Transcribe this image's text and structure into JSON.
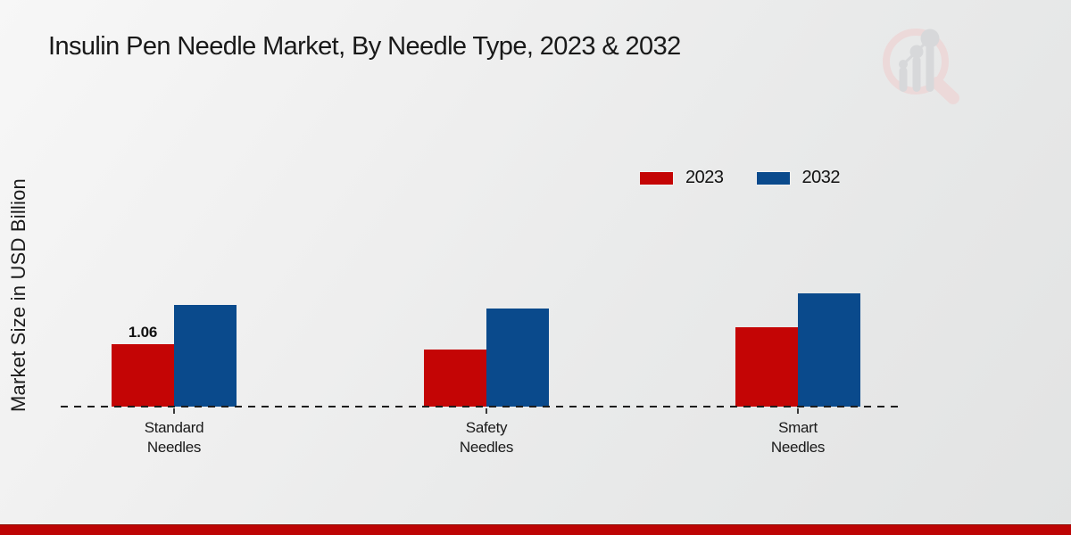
{
  "chart_data": {
    "type": "bar",
    "title": "Insulin Pen Needle Market, By Needle Type, 2023 & 2032",
    "ylabel": "Market Size in USD Billion",
    "xlabel": "",
    "categories": [
      "Standard Needles",
      "Safety Needles",
      "Smart Needles"
    ],
    "series": [
      {
        "name": "2023",
        "color": "#c40505",
        "values": [
          1.06,
          0.97,
          1.35
        ]
      },
      {
        "name": "2032",
        "color": "#0a4a8c",
        "values": [
          1.73,
          1.67,
          1.92
        ]
      }
    ],
    "data_labels": [
      {
        "series_index": 0,
        "category_index": 0,
        "text": "1.06"
      }
    ],
    "ylim": [
      0,
      2.2
    ],
    "grid": false,
    "legend_position": "top-right",
    "baseline_style": "dashed"
  },
  "branding": {
    "watermark_icon": "market-research-magnifier-bar-chart-logo",
    "footer_accent_color": "#bd0404",
    "watermark_ring_color": "#ecd9d9",
    "watermark_bars_color": "#d7d8da"
  }
}
